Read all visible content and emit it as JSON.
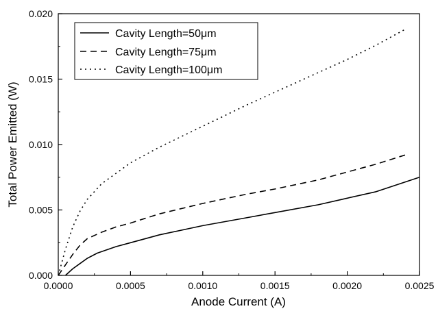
{
  "chart_data": {
    "type": "line",
    "title": "",
    "xlabel": "Anode Current (A)",
    "ylabel": "Total Power Emitted (W)",
    "xlim": [
      0.0,
      0.0025
    ],
    "ylim": [
      0.0,
      0.02
    ],
    "x_ticks": [
      "0.0000",
      "0.0005",
      "0.0010",
      "0.0015",
      "0.0020",
      "0.0025"
    ],
    "y_ticks": [
      "0.000",
      "0.005",
      "0.010",
      "0.015",
      "0.020"
    ],
    "grid": false,
    "legend_position": "top-left",
    "series": [
      {
        "name": "Cavity Length=50μm",
        "line_style": "solid",
        "color": "#000000",
        "x": [
          5e-05,
          0.0001,
          0.00015,
          0.0002,
          0.00027,
          0.0004,
          0.0005,
          0.0007,
          0.001,
          0.0013,
          0.0015,
          0.0018,
          0.002,
          0.0022,
          0.0025
        ],
        "y": [
          0.0,
          0.0005,
          0.0009,
          0.0013,
          0.0017,
          0.0022,
          0.0025,
          0.0031,
          0.0038,
          0.0044,
          0.0048,
          0.0054,
          0.0059,
          0.0064,
          0.0075
        ]
      },
      {
        "name": "Cavity Length=75μm",
        "line_style": "dashed",
        "color": "#000000",
        "x": [
          0.0,
          5e-05,
          0.0001,
          0.00015,
          0.0002,
          0.0003,
          0.0004,
          0.0005,
          0.0007,
          0.001,
          0.0013,
          0.0015,
          0.0018,
          0.002,
          0.0022,
          0.0024
        ],
        "y": [
          0.0,
          0.0008,
          0.0016,
          0.0023,
          0.0028,
          0.0033,
          0.0037,
          0.004,
          0.0047,
          0.0055,
          0.0062,
          0.0066,
          0.0073,
          0.0079,
          0.0085,
          0.0092
        ]
      },
      {
        "name": "Cavity Length=100μm",
        "line_style": "dotted",
        "color": "#000000",
        "x": [
          0.0,
          5e-05,
          0.0001,
          0.00015,
          0.0002,
          0.0003,
          0.0004,
          0.0005,
          0.0007,
          0.001,
          0.0013,
          0.0015,
          0.0018,
          0.002,
          0.0022,
          0.0024
        ],
        "y": [
          0.0,
          0.002,
          0.0037,
          0.0049,
          0.0058,
          0.007,
          0.0078,
          0.0086,
          0.0098,
          0.0114,
          0.013,
          0.014,
          0.0155,
          0.0165,
          0.0176,
          0.0188
        ]
      }
    ]
  }
}
